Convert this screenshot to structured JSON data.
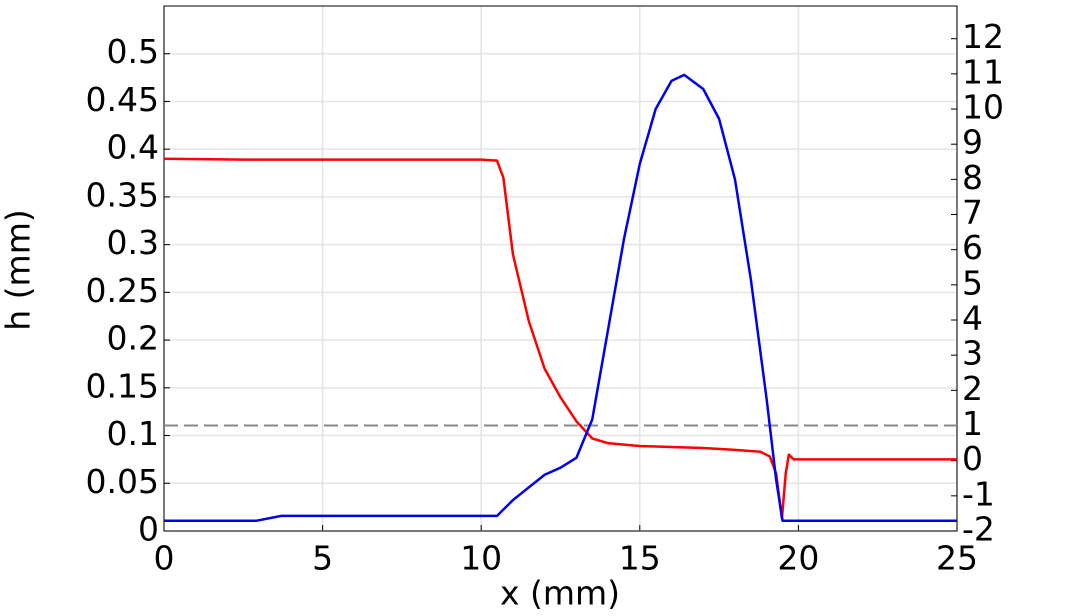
{
  "chart_data": {
    "type": "line",
    "xlabel": "x (mm)",
    "ylabel": "h (mm)",
    "xlim": [
      0,
      25
    ],
    "xticks": [
      0,
      5,
      10,
      15,
      20,
      25
    ],
    "ylim": [
      0,
      0.55
    ],
    "yticks": [
      0,
      0.05,
      0.1,
      0.15,
      0.2,
      0.25,
      0.3,
      0.35,
      0.4,
      0.45,
      0.5
    ],
    "y2lim": [
      -2,
      12.93
    ],
    "y2ticks": [
      -2,
      -1,
      0,
      1,
      2,
      3,
      4,
      5,
      6,
      7,
      8,
      9,
      10,
      11,
      12
    ],
    "grid": true,
    "series": [
      {
        "color": "#ff0000",
        "axis": "y",
        "x": [
          0,
          2.5,
          3,
          10,
          10.5,
          10.7,
          11,
          11.5,
          12,
          12.5,
          13,
          13.5,
          14,
          15,
          16,
          17,
          18,
          18.8,
          19.1,
          19.3,
          19.48,
          19.6,
          19.7,
          19.85,
          20,
          25
        ],
        "values": [
          0.39,
          0.389,
          0.389,
          0.389,
          0.388,
          0.37,
          0.29,
          0.22,
          0.17,
          0.14,
          0.115,
          0.097,
          0.092,
          0.089,
          0.088,
          0.087,
          0.085,
          0.083,
          0.078,
          0.06,
          0.013,
          0.06,
          0.08,
          0.075,
          0.075,
          0.075
        ]
      },
      {
        "color": "#0000ee",
        "axis": "y2",
        "x": [
          0,
          2.9,
          3.7,
          10.5,
          11,
          12,
          12.5,
          13,
          13.5,
          14,
          14.5,
          15,
          15.5,
          16,
          16.4,
          17,
          17.5,
          18,
          18.5,
          19,
          19.3,
          19.5,
          25
        ],
        "values": [
          -1.71,
          -1.71,
          -1.57,
          -1.57,
          -1.12,
          -0.4,
          -0.2,
          0.08,
          1.17,
          3.73,
          6.3,
          8.44,
          10.0,
          10.8,
          10.97,
          10.57,
          9.72,
          8.0,
          5.16,
          1.74,
          -0.55,
          -1.71,
          -1.71
        ]
      }
    ],
    "reference_lines": [
      {
        "axis": "y2",
        "value": 1,
        "color": "#888888"
      }
    ]
  }
}
